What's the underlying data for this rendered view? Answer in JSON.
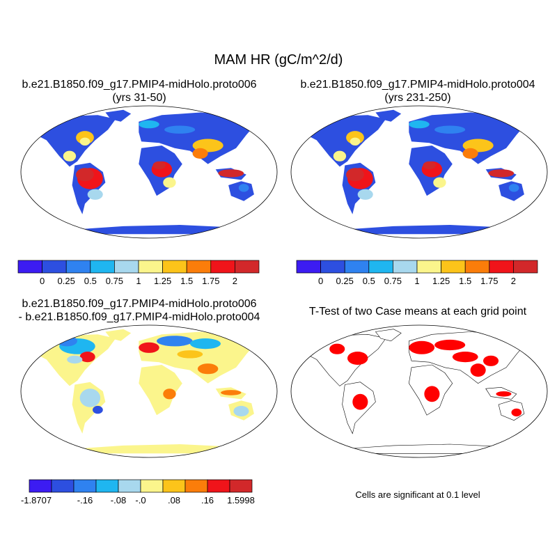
{
  "title": "MAM HR (gC/m^2/d)",
  "colors": {
    "ocean": "#ffffff",
    "coast": "#000000",
    "significant": "#ff0000"
  },
  "panels": [
    {
      "title_line1": "b.e21.B1850.f09_g17.PMIP4-midHolo.proto006",
      "title_line2": "(yrs 31-50)",
      "colorbar_ticks": [
        "0",
        "0.25",
        "0.5",
        "0.75",
        "1",
        "1.25",
        "1.5",
        "1.75",
        "2"
      ]
    },
    {
      "title_line1": "b.e21.B1850.f09_g17.PMIP4-midHolo.proto004",
      "title_line2": "(yrs 231-250)",
      "colorbar_ticks": [
        "0",
        "0.25",
        "0.5",
        "0.75",
        "1",
        "1.25",
        "1.5",
        "1.75",
        "2"
      ]
    },
    {
      "title_line1": "b.e21.B1850.f09_g17.PMIP4-midHolo.proto006",
      "title_line2": "- b.e21.B1850.f09_g17.PMIP4-midHolo.proto004",
      "colorbar_ticks": [
        "-1.8707",
        "-.16",
        "-.08",
        "-.0",
        ".08",
        ".16",
        "1.5998"
      ]
    },
    {
      "title_line1": "T-Test of two Case means at each grid point",
      "note": "Cells are significant at 0.1 level"
    }
  ],
  "chart_data": [
    {
      "type": "heatmap",
      "projection": "Robinson world map",
      "variable": "MAM HR",
      "units": "gC/m^2/d",
      "colorbar_levels": [
        0,
        0.25,
        0.5,
        0.75,
        1,
        1.25,
        1.5,
        1.75,
        2
      ],
      "colorbar_colors": [
        "#3c1cf2",
        "#2d4fe0",
        "#2f82f0",
        "#1fb6f0",
        "#a8d8ee",
        "#fbf58c",
        "#fcc41a",
        "#fb7d0a",
        "#f0141a",
        "#d2282a"
      ],
      "regions": [
        {
          "region": "Amazon basin",
          "approx_value": 2
        },
        {
          "region": "Central Africa",
          "approx_value": 2
        },
        {
          "region": "Maritime Continent",
          "approx_value": 2
        },
        {
          "region": "Eastern North America",
          "approx_value": 1.25
        },
        {
          "region": "South and East Asia",
          "approx_value": 1.5
        },
        {
          "region": "Siberia and Canada",
          "approx_value": 0.25
        },
        {
          "region": "Sahara and Australia interior",
          "approx_value": 0.25
        },
        {
          "region": "Antarctica",
          "approx_value": 0
        }
      ]
    },
    {
      "type": "heatmap",
      "projection": "Robinson world map",
      "variable": "MAM HR",
      "units": "gC/m^2/d",
      "colorbar_levels": [
        0,
        0.25,
        0.5,
        0.75,
        1,
        1.25,
        1.5,
        1.75,
        2
      ],
      "colorbar_colors": [
        "#3c1cf2",
        "#2d4fe0",
        "#2f82f0",
        "#1fb6f0",
        "#a8d8ee",
        "#fbf58c",
        "#fcc41a",
        "#fb7d0a",
        "#f0141a",
        "#d2282a"
      ],
      "regions": [
        {
          "region": "Amazon basin",
          "approx_value": 2
        },
        {
          "region": "Central Africa",
          "approx_value": 2
        },
        {
          "region": "Maritime Continent",
          "approx_value": 2
        },
        {
          "region": "Eastern North America",
          "approx_value": 1.25
        },
        {
          "region": "South and East Asia",
          "approx_value": 1.5
        },
        {
          "region": "Siberia and Canada",
          "approx_value": 0.25
        },
        {
          "region": "Sahara and Australia interior",
          "approx_value": 0.25
        },
        {
          "region": "Antarctica",
          "approx_value": 0
        }
      ]
    },
    {
      "type": "heatmap",
      "projection": "Robinson world map",
      "variable": "MAM HR difference",
      "colorbar_levels": [
        -1.8707,
        -0.16,
        -0.08,
        -0.0,
        0.08,
        0.16,
        1.5998
      ],
      "colorbar_colors": [
        "#3c1cf2",
        "#2d4fe0",
        "#2f82f0",
        "#1fb6f0",
        "#a8d8ee",
        "#fbf58c",
        "#fcc41a",
        "#fb7d0a",
        "#f0141a",
        "#d2282a"
      ],
      "regions": [
        {
          "region": "Eastern North America",
          "approx_value": 0.16
        },
        {
          "region": "Europe",
          "approx_value": 0.16
        },
        {
          "region": "Siberia",
          "approx_value": -0.08
        },
        {
          "region": "Canada",
          "approx_value": -0.08
        },
        {
          "region": "Sahara",
          "approx_value": 0.0
        },
        {
          "region": "Antarctica",
          "approx_value": 0.0
        }
      ]
    },
    {
      "type": "heatmap",
      "projection": "Robinson world map",
      "variable": "T-Test significance",
      "significance_level": 0.1,
      "regions": [
        {
          "region": "Eastern North America",
          "significant": true
        },
        {
          "region": "Europe",
          "significant": true
        },
        {
          "region": "Central Asia",
          "significant": true
        },
        {
          "region": "India",
          "significant": true
        },
        {
          "region": "Central Africa",
          "significant": true
        },
        {
          "region": "South America",
          "significant": true
        },
        {
          "region": "Sahara",
          "significant": false
        },
        {
          "region": "Antarctica",
          "significant": false
        }
      ]
    }
  ]
}
